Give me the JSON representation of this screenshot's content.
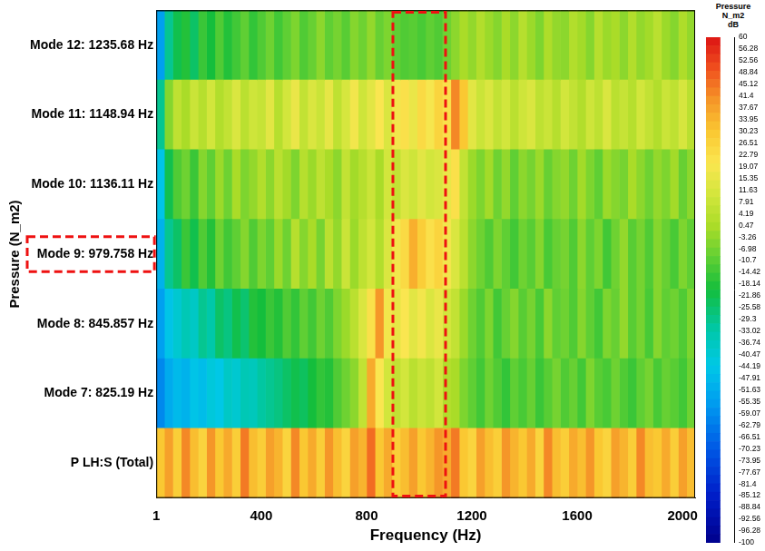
{
  "chart_data": {
    "type": "heatmap",
    "x_label": "Frequency (Hz)",
    "y_label": "Pressure (N_m2)",
    "categories": [
      "Mode 12: 1235.68 Hz",
      "Mode 11: 1148.94 Hz",
      "Mode 10: 1136.11 Hz",
      "Mode 9: 979.758 Hz",
      "Mode 8: 845.857 Hz",
      "Mode 7: 825.19 Hz",
      "P LH:S (Total)"
    ],
    "bins": [
      1,
      32,
      64,
      96,
      128,
      160,
      192,
      224,
      256,
      288,
      320,
      352,
      384,
      416,
      448,
      480,
      512,
      544,
      576,
      608,
      640,
      672,
      704,
      736,
      768,
      800,
      832,
      864,
      896,
      928,
      960,
      992,
      1024,
      1056,
      1088,
      1120,
      1152,
      1184,
      1216,
      1248,
      1280,
      1312,
      1344,
      1376,
      1408,
      1440,
      1472,
      1504,
      1536,
      1568,
      1600,
      1632,
      1664,
      1696,
      1728,
      1760,
      1792,
      1824,
      1856,
      1888,
      1920,
      1952,
      1984,
      2016,
      2048
    ],
    "xlim": [
      1,
      2048
    ],
    "xticks": [
      1,
      400,
      800,
      1200,
      1600,
      2000
    ],
    "cells": [
      [
        -55,
        -30,
        -22,
        -18,
        -25,
        -15,
        -20,
        -12,
        -18,
        -14,
        -10,
        -16,
        -12,
        -8,
        -14,
        -10,
        -6,
        -12,
        -9,
        -4,
        -10,
        -7,
        -11,
        -5,
        -8,
        -3,
        -9,
        -6,
        -10,
        -12,
        -11,
        -13,
        -10,
        -12,
        -8,
        -4,
        0,
        -3,
        2,
        -2,
        -5,
        0,
        -4,
        3,
        -2,
        -6,
        1,
        -3,
        -4,
        2,
        -1,
        -5,
        3,
        -2,
        0,
        -4,
        2,
        -3,
        -1,
        4,
        -2,
        -5,
        1,
        -3
      ],
      [
        -30,
        -5,
        5,
        0,
        8,
        3,
        10,
        2,
        6,
        12,
        4,
        9,
        7,
        14,
        3,
        10,
        16,
        6,
        12,
        8,
        15,
        5,
        11,
        18,
        9,
        14,
        20,
        12,
        18,
        22,
        16,
        24,
        19,
        26,
        22,
        42,
        30,
        14,
        8,
        12,
        6,
        10,
        4,
        9,
        12,
        5,
        8,
        3,
        10,
        6,
        2,
        9,
        5,
        12,
        4,
        7,
        3,
        10,
        6,
        2,
        8,
        5,
        11,
        4
      ],
      [
        -45,
        -22,
        -12,
        -8,
        -15,
        -5,
        -10,
        -2,
        -8,
        0,
        -6,
        -3,
        2,
        -4,
        4,
        -1,
        -6,
        3,
        -2,
        5,
        0,
        -4,
        6,
        -1,
        3,
        8,
        0,
        10,
        6,
        12,
        9,
        14,
        10,
        12,
        16,
        22,
        6,
        -2,
        -6,
        -1,
        -8,
        -3,
        -10,
        -4,
        -7,
        -2,
        -9,
        -5,
        -3,
        -8,
        -1,
        -6,
        -10,
        -2,
        -5,
        -7,
        0,
        -4,
        -8,
        -3,
        -6,
        -1,
        -9,
        -4
      ],
      [
        -50,
        -30,
        -25,
        -15,
        -22,
        -12,
        -18,
        -8,
        -14,
        -10,
        -5,
        -12,
        -6,
        -10,
        -2,
        -8,
        3,
        -5,
        0,
        -7,
        4,
        -3,
        8,
        -2,
        5,
        10,
        2,
        12,
        18,
        24,
        35,
        28,
        22,
        26,
        18,
        12,
        4,
        -4,
        -8,
        -12,
        -6,
        -10,
        -14,
        -8,
        -11,
        -5,
        -13,
        -9,
        -7,
        -12,
        -4,
        -10,
        -6,
        -14,
        -8,
        -3,
        -11,
        -7,
        -12,
        -5,
        -9,
        -13,
        -6,
        -10
      ],
      [
        -55,
        -45,
        -40,
        -35,
        -38,
        -30,
        -33,
        -25,
        -28,
        -22,
        -26,
        -18,
        -20,
        -15,
        -18,
        -12,
        -16,
        -10,
        -14,
        -8,
        -12,
        -6,
        -2,
        4,
        12,
        22,
        40,
        18,
        15,
        20,
        14,
        18,
        12,
        16,
        10,
        6,
        -2,
        -8,
        -12,
        -6,
        -14,
        -9,
        -5,
        -11,
        -7,
        -13,
        -4,
        -10,
        -8,
        -12,
        -5,
        -10,
        -14,
        -6,
        -9,
        -3,
        -11,
        -7,
        -13,
        -5,
        -10,
        -8,
        -12,
        -6
      ],
      [
        -60,
        -52,
        -48,
        -50,
        -45,
        -47,
        -42,
        -44,
        -38,
        -40,
        -35,
        -36,
        -32,
        -30,
        -28,
        -25,
        -22,
        -24,
        -20,
        -16,
        -18,
        -12,
        -8,
        -4,
        6,
        36,
        20,
        10,
        6,
        10,
        4,
        8,
        5,
        10,
        2,
        0,
        -6,
        -10,
        -14,
        -8,
        -12,
        -16,
        -10,
        -13,
        -9,
        -15,
        -11,
        -7,
        -12,
        -9,
        -14,
        -6,
        -11,
        -13,
        -8,
        -12,
        -15,
        -10,
        -7,
        -13,
        -9,
        -11,
        -14,
        -8
      ],
      [
        30,
        38,
        28,
        42,
        32,
        26,
        40,
        30,
        36,
        28,
        44,
        32,
        28,
        38,
        34,
        26,
        42,
        30,
        36,
        28,
        40,
        32,
        26,
        38,
        34,
        46,
        30,
        36,
        28,
        32,
        38,
        30,
        34,
        40,
        36,
        44,
        30,
        26,
        38,
        32,
        28,
        40,
        34,
        30,
        36,
        26,
        42,
        32,
        28,
        36,
        32,
        40,
        30,
        26,
        38,
        34,
        28,
        42,
        32,
        30,
        36,
        28,
        38,
        32
      ]
    ],
    "colorbar_title": "Pressure N_m2 dB",
    "colorbar_range": [
      -100,
      60
    ],
    "colorbar_ticks": [
      60,
      56.28,
      52.56,
      48.84,
      45.12,
      41.4,
      37.67,
      33.95,
      30.23,
      26.51,
      22.79,
      19.07,
      15.35,
      11.63,
      7.91,
      4.19,
      0.47,
      -3.26,
      -6.98,
      -10.7,
      -14.42,
      -18.14,
      -21.86,
      -25.58,
      -29.3,
      -33.02,
      -36.74,
      -40.47,
      -44.19,
      -47.91,
      -51.63,
      -55.35,
      -59.07,
      -62.79,
      -66.51,
      -70.23,
      -73.95,
      -77.67,
      -81.4,
      -85.12,
      -88.84,
      -92.56,
      -96.28,
      -100
    ],
    "highlight": {
      "x": [
        900,
        1100
      ],
      "category": "Mode 9: 979.758 Hz"
    }
  }
}
